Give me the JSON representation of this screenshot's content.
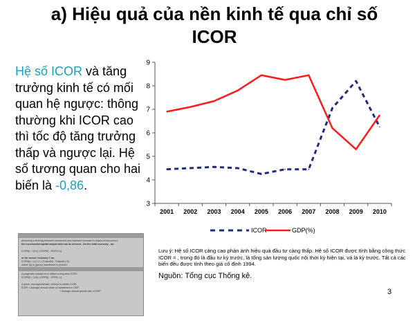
{
  "slide": {
    "title_line1": "a) Hiệu quả của nền kinh tế qua chỉ số",
    "title_line2": "ICOR",
    "body_highlight": "Hệ số ICOR",
    "body_text": " và tăng trưởng kinh tế có mối quan hệ ngược: thông thường khi ICOR cao thì tốc độ tăng trưởng thấp và ngược lại. Hệ số tương quan cho hai biến là ",
    "body_value": "-0,86",
    "body_end": ".",
    "note": "Lưu ý: Hệ số ICOR càng cao phản ánh hiệu quả đầu tư càng thấp. Hệ số ICOR được tính bằng công thức ICOR = , trong đó  là đầu tư kỳ trước,  là tổng sản lượng quốc nội thời kỳ hiện tại, và  là kỳ trước. Tất cả các biến đều được tính theo giá cố định 1994.",
    "source": "Nguồn: Tổng cục Thống kê.",
    "page_number": "3",
    "colors": {
      "accent_text": "#1aa0b8",
      "icor_series": "#1f2a80",
      "gdp_series": "#ff1a1a"
    }
  },
  "scan": {
    "l1": "Assuming a time lag between investment and resultant increase in output of one period,",
    "l2": "the incremental capital output ratio can be derived - for the total economy - as:",
    "l3": "ICOR(t)   =   I(t-1) / (GDP(t) - GDP(t-1))",
    "l4": "or for sector / industry 'i' as:",
    "l5": "ICOR(it)   =   I(i,t-1) / (Output(it) - Output(i,t-1))",
    "l6": "where I(t) is (gross) investment in period t",
    "l7": "A pragmatic solution is to obtain a long-term ICOR:",
    "l8": "ICOR(lt)   =   Σ(It) / (GDP(t) - GDP(t-1))",
    "l9": "A quick, and approximate, method to obtain ICOR:",
    "l10": "ICOR   =   Average annual share of investment in GDP",
    "l11": "/ Average annual growth rate of GDP"
  },
  "chart_data": {
    "type": "line",
    "x": [
      "2001",
      "2002",
      "2003",
      "2004",
      "2005",
      "2006",
      "2007",
      "2008",
      "2009",
      "2010"
    ],
    "series": [
      {
        "name": "ICOR",
        "style": "dashed",
        "color": "#1f2a80",
        "values": [
          4.45,
          4.5,
          4.55,
          4.5,
          4.25,
          4.45,
          4.45,
          7.05,
          8.2,
          6.25
        ]
      },
      {
        "name": "GDP(%)",
        "style": "solid",
        "color": "#ff1a1a",
        "values": [
          6.9,
          7.1,
          7.35,
          7.8,
          8.45,
          8.25,
          8.45,
          6.2,
          5.3,
          6.75
        ]
      }
    ],
    "ylim": [
      3,
      9
    ],
    "yticks": [
      "3",
      "4",
      "5",
      "6",
      "7",
      "8",
      "9"
    ],
    "legend_position": "bottom",
    "grid": false
  }
}
